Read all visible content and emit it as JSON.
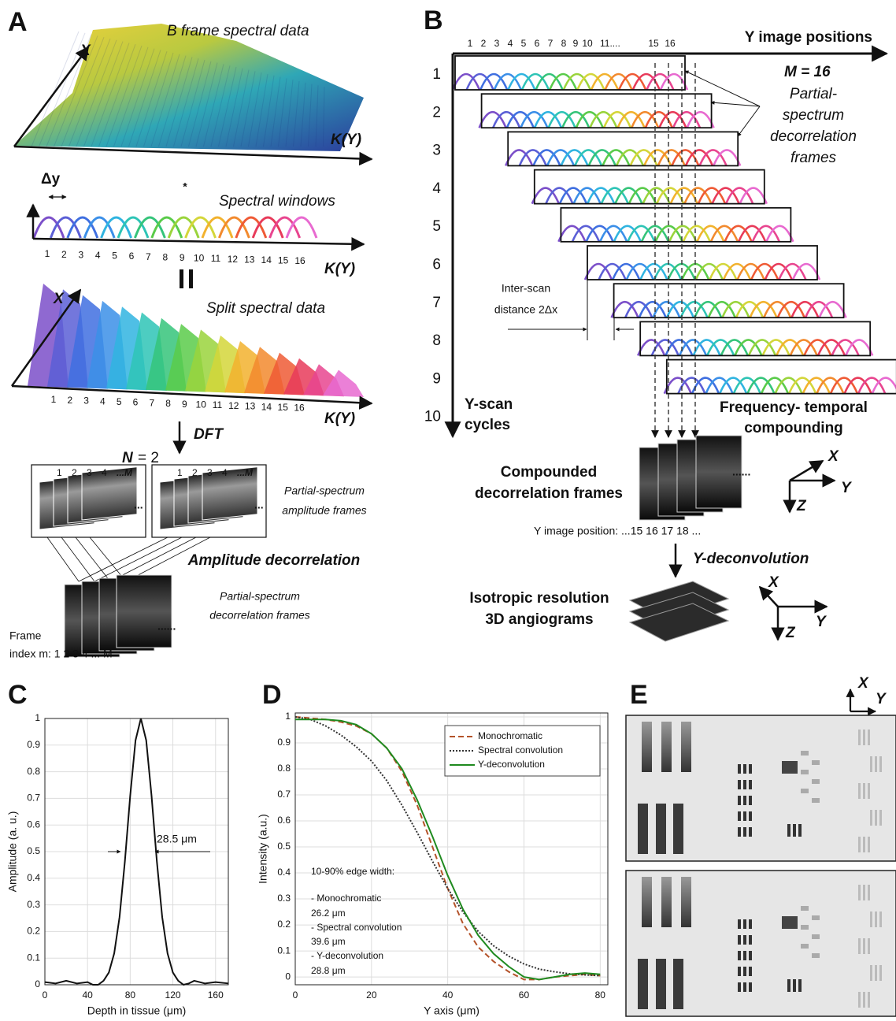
{
  "panel_a": {
    "label": "A",
    "b_frame_title": "B frame spectral data",
    "b_frame_x": "X",
    "b_frame_k": "K(Y)",
    "delta_y": "Δy",
    "convolve": "*",
    "windows_title": "Spectral windows",
    "window_numbers": [
      "1",
      "2",
      "3",
      "4",
      "5",
      "6",
      "7",
      "8",
      "9",
      "10",
      "11",
      "12",
      "13",
      "14",
      "15",
      "16"
    ],
    "windows_k": "K(Y)",
    "split_x": "X",
    "split_title": "Split spectral data",
    "split_numbers": [
      "1",
      "2",
      "3",
      "4",
      "5",
      "6",
      "7",
      "8",
      "9",
      "10",
      "11",
      "12",
      "13",
      "14",
      "15",
      "16"
    ],
    "split_k": "K(Y)",
    "dft": "DFT",
    "n_symbol": "N",
    "n_value": "= 2",
    "frame_numbers": [
      "1",
      "2",
      "3",
      "4",
      "...M"
    ],
    "frame_more": "...",
    "amplitude_frames": [
      "Partial-spectrum",
      "amplitude frames"
    ],
    "amplitude_decorrelation": "Amplitude decorrelation",
    "decorrelation_frames": [
      "Partial-spectrum",
      "decorrelation frames"
    ],
    "decorrelation_more": "......",
    "frame_index": [
      "Frame",
      "index m:  1   2   3   4 ... M"
    ]
  },
  "panel_b": {
    "label": "B",
    "top_numbers": [
      "1",
      "2",
      "3",
      "4",
      "5",
      "6",
      "7",
      "8",
      "9",
      "10",
      "11....",
      "15",
      "16"
    ],
    "y_positions": "Y image positions",
    "cycles": [
      "1",
      "2",
      "3",
      "4",
      "5",
      "6",
      "7",
      "8",
      "9",
      "10"
    ],
    "m_label": "M = 16",
    "partial_frames": [
      "Partial-",
      "spectrum",
      "decorrelation",
      "frames"
    ],
    "inter_scan": [
      "Inter-scan",
      "distance 2Δx"
    ],
    "y_scan": [
      "Y-scan",
      "cycles"
    ],
    "compounding": [
      "Frequency- temporal",
      "compounding"
    ],
    "compounded": [
      "Compounded",
      "decorrelation frames"
    ],
    "more": "......",
    "axes_1": {
      "x": "X",
      "y": "Y",
      "z": "Z"
    },
    "position_row": "Y image position: ...15 16 17 18 ...",
    "deconvolution": "Y-deconvolution",
    "isotropic": [
      "Isotropic resolution",
      "3D angiograms"
    ],
    "axes_2": {
      "x": "X",
      "y": "Y",
      "z": "Z"
    }
  },
  "panel_e": {
    "label": "E",
    "axes": {
      "x": "X",
      "y": "Y"
    }
  },
  "chart_data": [
    {
      "type": "line",
      "label": "C",
      "x_label": "Depth in tissue (μm)",
      "y_label": "Amplitude (a. u.)",
      "annotation": "28.5 μm",
      "x": [
        0,
        10,
        20,
        30,
        40,
        45,
        50,
        55,
        60,
        65,
        70,
        75,
        80,
        85,
        90,
        95,
        100,
        105,
        110,
        115,
        120,
        125,
        130,
        135,
        140,
        150,
        160,
        172
      ],
      "series": [
        {
          "color": "#111111",
          "dash": "solid",
          "values": [
            0.01,
            0.005,
            0.015,
            0.005,
            0.01,
            0,
            0,
            0.015,
            0.046,
            0.118,
            0.254,
            0.463,
            0.71,
            0.918,
            1,
            0.918,
            0.71,
            0.463,
            0.254,
            0.118,
            0.046,
            0.015,
            0,
            0.005,
            0.015,
            0.005,
            0.01,
            0.005
          ]
        }
      ],
      "xlim": [
        0,
        172
      ],
      "ylim": [
        0,
        1
      ],
      "xticks": [
        0,
        40,
        80,
        120,
        160
      ],
      "yticks": [
        0,
        0.1,
        0.2,
        0.3,
        0.4,
        0.5,
        0.6,
        0.7,
        0.8,
        0.9,
        1
      ],
      "grid": true
    },
    {
      "type": "line",
      "label": "D",
      "x_label": "Y axis (μm)",
      "y_label": "Intensity (a.u.)",
      "annotation": [
        "10-90% edge width:",
        "- Monochromatic",
        "26.2 μm",
        "- Spectral convolution",
        "39.6 μm",
        "- Y-deconvolution",
        "28.8 μm"
      ],
      "x": [
        0,
        4,
        8,
        12,
        16,
        20,
        24,
        28,
        32,
        36,
        40,
        44,
        48,
        52,
        56,
        60,
        64,
        68,
        72,
        76,
        80
      ],
      "series": [
        {
          "name": "Monochromatic",
          "color": "#b4532a",
          "dash": "dashed",
          "values": [
            1,
            0.995,
            0.99,
            0.98,
            0.965,
            0.935,
            0.88,
            0.79,
            0.66,
            0.5,
            0.34,
            0.205,
            0.115,
            0.06,
            0.02,
            -0.01,
            -0.01,
            0,
            0.005,
            0.01,
            0.005
          ]
        },
        {
          "name": "Spectral convolution",
          "color": "#333333",
          "dash": "dotted",
          "values": [
            1,
            0.99,
            0.965,
            0.93,
            0.885,
            0.83,
            0.755,
            0.66,
            0.555,
            0.445,
            0.34,
            0.25,
            0.175,
            0.12,
            0.08,
            0.05,
            0.03,
            0.02,
            0.012,
            0.008,
            0.005
          ]
        },
        {
          "name": "Y-deconvolution",
          "color": "#1f8a1f",
          "dash": "solid",
          "values": [
            0.99,
            0.99,
            0.99,
            0.985,
            0.97,
            0.935,
            0.88,
            0.8,
            0.68,
            0.54,
            0.39,
            0.26,
            0.16,
            0.09,
            0.04,
            0,
            -0.01,
            0,
            0.01,
            0.015,
            0.01
          ]
        }
      ],
      "xlim": [
        0,
        82
      ],
      "ylim": [
        -0.03,
        1.015
      ],
      "xticks": [
        0,
        20,
        40,
        60,
        80
      ],
      "yticks": [
        0,
        0.1,
        0.2,
        0.3,
        0.4,
        0.5,
        0.6,
        0.7,
        0.8,
        0.9,
        1
      ],
      "grid": true,
      "legend": "upper right"
    }
  ]
}
